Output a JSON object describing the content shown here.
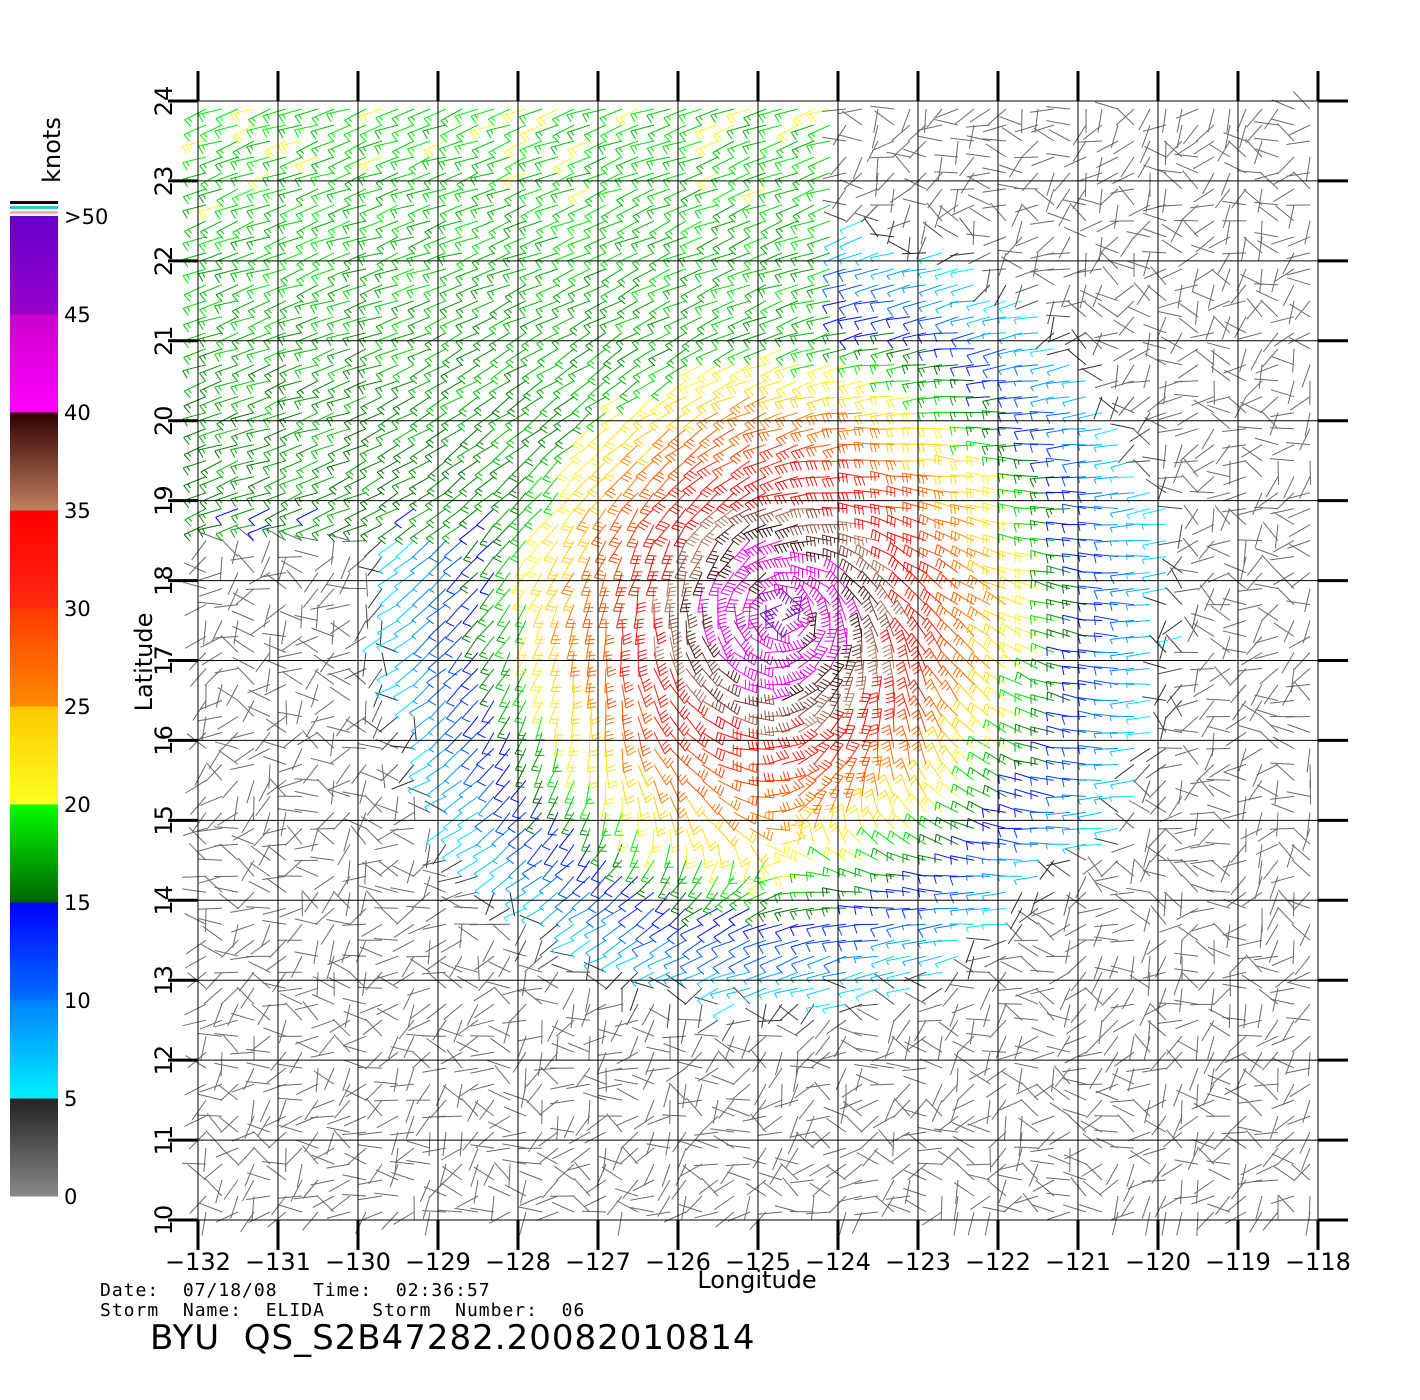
{
  "chart_data": {
    "type": "wind-barb-map",
    "xlabel": "Longitude",
    "ylabel": "Latitude",
    "xlim": [
      -132,
      -118
    ],
    "ylim": [
      10,
      24
    ],
    "x_ticks": [
      "-132",
      "-131",
      "-130",
      "-129",
      "-128",
      "-127",
      "-126",
      "-125",
      "-124",
      "-123",
      "-122",
      "-121",
      "-120",
      "-119",
      "-118"
    ],
    "y_ticks": [
      "10",
      "11",
      "12",
      "13",
      "14",
      "15",
      "16",
      "17",
      "18",
      "19",
      "20",
      "21",
      "22",
      "23",
      "24"
    ],
    "grid": true,
    "storm_center": {
      "lon": -124.7,
      "lat": 17.6
    },
    "colorbar": {
      "unit": "knots",
      "position": "left",
      "labels": [
        "0",
        "5",
        "10",
        "15",
        "20",
        "25",
        "30",
        "35",
        "40",
        "45",
        ">50"
      ],
      "bands": [
        {
          "min": 0,
          "max": 5,
          "colors": [
            "#888888",
            "#222222"
          ]
        },
        {
          "min": 5,
          "max": 10,
          "colors": [
            "#00f0ff",
            "#0080ff"
          ]
        },
        {
          "min": 10,
          "max": 15,
          "colors": [
            "#0070ff",
            "#0000ff"
          ]
        },
        {
          "min": 15,
          "max": 20,
          "colors": [
            "#006400",
            "#00ff00"
          ]
        },
        {
          "min": 20,
          "max": 25,
          "colors": [
            "#ffff20",
            "#ffc800"
          ]
        },
        {
          "min": 25,
          "max": 30,
          "colors": [
            "#ff8a00",
            "#ff3a00"
          ]
        },
        {
          "min": 30,
          "max": 35,
          "colors": [
            "#ff2a10",
            "#ff0000"
          ]
        },
        {
          "min": 35,
          "max": 40,
          "colors": [
            "#c08060",
            "#300000"
          ]
        },
        {
          "min": 40,
          "max": 45,
          "colors": [
            "#ff00ff",
            "#cc00cc"
          ]
        },
        {
          "min": 45,
          "max": 50,
          "colors": [
            "#9900cc",
            "#6600cc"
          ]
        }
      ],
      "top_stripes": [
        "#ffb0b0",
        "#20d0d0",
        "#000000"
      ]
    }
  },
  "footer": {
    "date_line": "Date:  07/18/08   Time:  02:36:57",
    "storm_line": "Storm  Name:  ELIDA    Storm  Number:  06",
    "product_id": "BYU  QS_S2B47282.20082010814"
  }
}
